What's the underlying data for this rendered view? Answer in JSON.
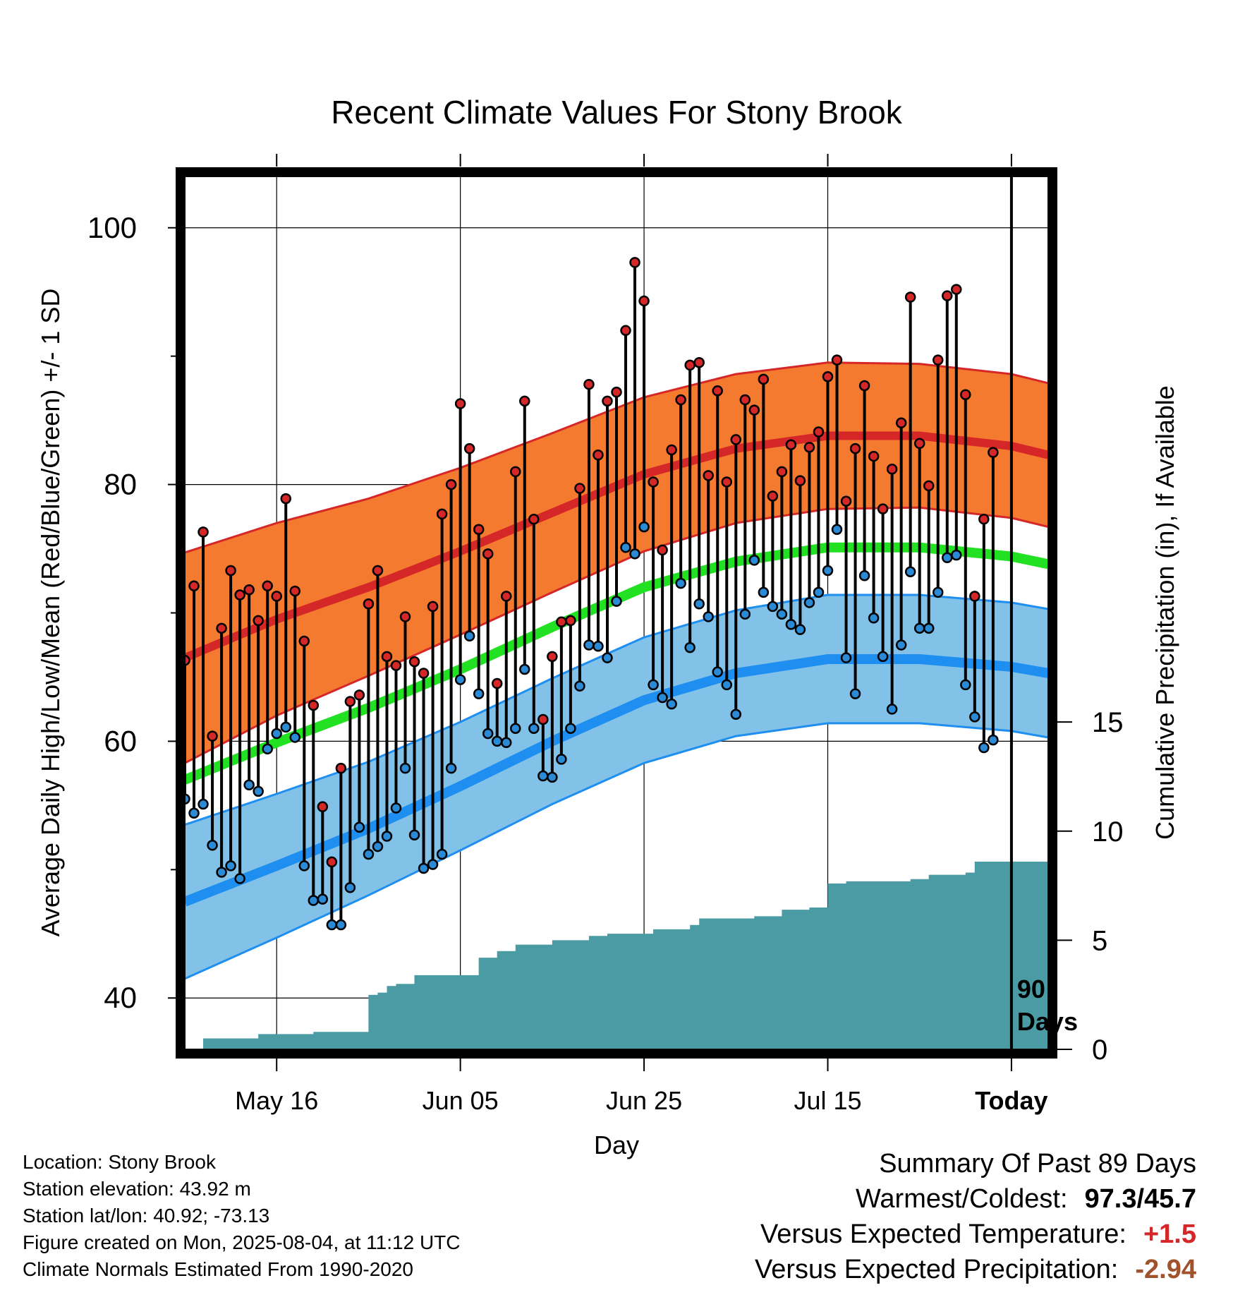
{
  "chart_data": {
    "type": "line",
    "title": "Recent Climate Values For Stony Brook",
    "xlabel": "Day",
    "ylabel": "Average Daily High/Low/Mean (Red/Blue/Green) +/- 1 SD",
    "y2label": "Cumulative Precipitation (in), If Available",
    "ylim": [
      36,
      104
    ],
    "y2lim": [
      0,
      40
    ],
    "yticks": [
      40,
      60,
      80,
      100
    ],
    "y2ticks": [
      0,
      5,
      10,
      15
    ],
    "x_dates": [
      "2025-05-06",
      "2025-08-08"
    ],
    "x_tick_dates": [
      "2025-05-16",
      "2025-06-05",
      "2025-06-25",
      "2025-07-15",
      "2025-08-04"
    ],
    "xtick_labels": [
      "May 16",
      "Jun 05",
      "Jun 25",
      "Jul 15",
      "Today"
    ],
    "today": "2025-08-04",
    "today_label": [
      "90",
      "Days"
    ],
    "grid": true,
    "colors": {
      "high_band": "#f47a30",
      "high_line": "#d62728",
      "low_band": "#82c2e8",
      "low_line": "#1e8ff0",
      "mean_line": "#22e022",
      "precip": "#4a9ba4",
      "high_dot": "#d62728",
      "low_dot": "#2b8ad6",
      "plus": "#d62728",
      "minus": "#a0522d"
    },
    "normals": {
      "dates": [
        "2025-05-06",
        "2025-05-16",
        "2025-05-26",
        "2025-06-05",
        "2025-06-15",
        "2025-06-25",
        "2025-07-05",
        "2025-07-15",
        "2025-07-25",
        "2025-08-04",
        "2025-08-08"
      ],
      "high_mean": [
        66.5,
        69.5,
        72.0,
        74.8,
        77.8,
        80.8,
        82.8,
        83.8,
        83.8,
        83.0,
        82.3
      ],
      "high_sd": [
        8.2,
        7.5,
        6.9,
        6.5,
        6.2,
        6.0,
        5.8,
        5.7,
        5.6,
        5.6,
        5.6
      ],
      "low_mean": [
        47.5,
        50.3,
        53.2,
        56.5,
        60.0,
        63.2,
        65.3,
        66.4,
        66.4,
        65.8,
        65.3
      ],
      "low_sd": [
        6.0,
        5.6,
        5.2,
        5.0,
        4.9,
        4.9,
        4.9,
        5.0,
        5.0,
        5.0,
        5.0
      ],
      "mean": [
        57.0,
        59.9,
        62.6,
        65.6,
        68.9,
        72.0,
        74.0,
        75.1,
        75.1,
        74.4,
        73.8
      ]
    },
    "series": [
      {
        "name": "High",
        "dates": [
          "2025-05-06",
          "2025-05-07",
          "2025-05-08",
          "2025-05-09",
          "2025-05-10",
          "2025-05-11",
          "2025-05-12",
          "2025-05-13",
          "2025-05-14",
          "2025-05-15",
          "2025-05-16",
          "2025-05-17",
          "2025-05-18",
          "2025-05-19",
          "2025-05-20",
          "2025-05-21",
          "2025-05-22",
          "2025-05-23",
          "2025-05-24",
          "2025-05-25",
          "2025-05-26",
          "2025-05-27",
          "2025-05-28",
          "2025-05-29",
          "2025-05-30",
          "2025-05-31",
          "2025-06-01",
          "2025-06-02",
          "2025-06-03",
          "2025-06-04",
          "2025-06-05",
          "2025-06-06",
          "2025-06-07",
          "2025-06-08",
          "2025-06-09",
          "2025-06-10",
          "2025-06-11",
          "2025-06-12",
          "2025-06-13",
          "2025-06-14",
          "2025-06-15",
          "2025-06-16",
          "2025-06-17",
          "2025-06-18",
          "2025-06-19",
          "2025-06-20",
          "2025-06-21",
          "2025-06-22",
          "2025-06-23",
          "2025-06-24",
          "2025-06-25",
          "2025-06-26",
          "2025-06-27",
          "2025-06-28",
          "2025-06-29",
          "2025-06-30",
          "2025-07-01",
          "2025-07-02",
          "2025-07-03",
          "2025-07-04",
          "2025-07-05",
          "2025-07-06",
          "2025-07-07",
          "2025-07-08",
          "2025-07-09",
          "2025-07-10",
          "2025-07-11",
          "2025-07-12",
          "2025-07-13",
          "2025-07-14",
          "2025-07-15",
          "2025-07-16",
          "2025-07-17",
          "2025-07-18",
          "2025-07-19",
          "2025-07-20",
          "2025-07-21",
          "2025-07-22",
          "2025-07-23",
          "2025-07-24",
          "2025-07-25",
          "2025-07-26",
          "2025-07-27",
          "2025-07-28",
          "2025-07-29",
          "2025-07-30",
          "2025-07-31",
          "2025-08-01",
          "2025-08-02"
        ],
        "values": [
          66.3,
          72.1,
          76.3,
          60.4,
          68.8,
          73.3,
          71.4,
          71.8,
          69.4,
          72.1,
          71.3,
          78.9,
          71.7,
          67.8,
          62.8,
          54.9,
          50.6,
          57.9,
          63.1,
          63.6,
          70.7,
          73.3,
          66.6,
          65.9,
          69.7,
          66.2,
          65.3,
          70.5,
          77.7,
          80.0,
          86.3,
          82.8,
          76.5,
          74.6,
          64.5,
          71.3,
          81.0,
          86.5,
          77.3,
          61.7,
          66.6,
          69.3,
          69.4,
          79.7,
          87.8,
          82.3,
          86.5,
          87.2,
          92.0,
          97.3,
          94.3,
          80.2,
          74.9,
          82.7,
          86.6,
          89.3,
          89.5,
          80.7,
          87.3,
          80.2,
          83.5,
          86.6,
          85.8,
          88.2,
          79.1,
          81.0,
          83.1,
          80.3,
          82.9,
          84.1,
          88.4,
          89.7,
          78.7,
          82.8,
          87.7,
          82.2,
          78.1,
          81.2,
          84.8,
          94.6,
          83.2,
          79.9,
          89.7,
          94.7,
          95.2,
          87.0,
          71.3,
          77.3,
          82.5
        ]
      },
      {
        "name": "Low",
        "dates": [
          "2025-05-06",
          "2025-05-07",
          "2025-05-08",
          "2025-05-09",
          "2025-05-10",
          "2025-05-11",
          "2025-05-12",
          "2025-05-13",
          "2025-05-14",
          "2025-05-15",
          "2025-05-16",
          "2025-05-17",
          "2025-05-18",
          "2025-05-19",
          "2025-05-20",
          "2025-05-21",
          "2025-05-22",
          "2025-05-23",
          "2025-05-24",
          "2025-05-25",
          "2025-05-26",
          "2025-05-27",
          "2025-05-28",
          "2025-05-29",
          "2025-05-30",
          "2025-05-31",
          "2025-06-01",
          "2025-06-02",
          "2025-06-03",
          "2025-06-04",
          "2025-06-05",
          "2025-06-06",
          "2025-06-07",
          "2025-06-08",
          "2025-06-09",
          "2025-06-10",
          "2025-06-11",
          "2025-06-12",
          "2025-06-13",
          "2025-06-14",
          "2025-06-15",
          "2025-06-16",
          "2025-06-17",
          "2025-06-18",
          "2025-06-19",
          "2025-06-20",
          "2025-06-21",
          "2025-06-22",
          "2025-06-23",
          "2025-06-24",
          "2025-06-25",
          "2025-06-26",
          "2025-06-27",
          "2025-06-28",
          "2025-06-29",
          "2025-06-30",
          "2025-07-01",
          "2025-07-02",
          "2025-07-03",
          "2025-07-04",
          "2025-07-05",
          "2025-07-06",
          "2025-07-07",
          "2025-07-08",
          "2025-07-09",
          "2025-07-10",
          "2025-07-11",
          "2025-07-12",
          "2025-07-13",
          "2025-07-14",
          "2025-07-15",
          "2025-07-16",
          "2025-07-17",
          "2025-07-18",
          "2025-07-19",
          "2025-07-20",
          "2025-07-21",
          "2025-07-22",
          "2025-07-23",
          "2025-07-24",
          "2025-07-25",
          "2025-07-26",
          "2025-07-27",
          "2025-07-28",
          "2025-07-29",
          "2025-07-30",
          "2025-07-31",
          "2025-08-01",
          "2025-08-02"
        ],
        "values": [
          55.5,
          54.4,
          55.1,
          51.9,
          49.8,
          50.3,
          49.3,
          56.6,
          56.1,
          59.4,
          60.6,
          61.1,
          60.3,
          50.3,
          47.6,
          47.7,
          45.7,
          45.7,
          48.6,
          53.3,
          51.2,
          51.8,
          52.6,
          54.8,
          57.9,
          52.7,
          50.1,
          50.4,
          51.2,
          57.9,
          64.8,
          68.2,
          63.7,
          60.6,
          60.0,
          59.9,
          61.0,
          65.6,
          61.0,
          57.3,
          57.2,
          58.6,
          61.0,
          64.3,
          67.5,
          67.4,
          66.5,
          70.9,
          75.1,
          74.6,
          76.7,
          64.4,
          63.4,
          62.9,
          72.3,
          67.3,
          70.7,
          69.7,
          65.4,
          64.4,
          62.1,
          69.9,
          74.1,
          71.6,
          70.5,
          69.9,
          69.1,
          68.7,
          70.8,
          71.6,
          73.3,
          76.5,
          66.5,
          63.7,
          72.9,
          69.6,
          66.6,
          62.5,
          67.5,
          73.2,
          68.8,
          68.8,
          71.6,
          74.3,
          74.5,
          64.4,
          61.9,
          59.5,
          60.1
        ]
      },
      {
        "name": "Precipitation",
        "dates": [
          "2025-05-07",
          "2025-05-08",
          "2025-05-12",
          "2025-05-14",
          "2025-05-20",
          "2025-05-26",
          "2025-05-27",
          "2025-05-28",
          "2025-05-29",
          "2025-05-31",
          "2025-06-07",
          "2025-06-09",
          "2025-06-11",
          "2025-06-15",
          "2025-06-19",
          "2025-06-21",
          "2025-06-26",
          "2025-06-30",
          "2025-07-01",
          "2025-07-07",
          "2025-07-10",
          "2025-07-13",
          "2025-07-15",
          "2025-07-17",
          "2025-07-24",
          "2025-07-26",
          "2025-07-30",
          "2025-07-31"
        ],
        "values": [
          0.0,
          0.5,
          0.5,
          0.7,
          0.8,
          2.5,
          2.6,
          2.9,
          3.0,
          3.4,
          4.2,
          4.5,
          4.8,
          5.0,
          5.2,
          5.3,
          5.5,
          5.7,
          6.0,
          6.1,
          6.4,
          6.5,
          7.6,
          7.7,
          7.8,
          8.0,
          8.1,
          8.6
        ]
      }
    ]
  },
  "footer": {
    "info": [
      "Location: Stony Brook",
      "Station elevation: 43.92 m",
      "Station lat/lon: 40.92; -73.13",
      "Figure created on Mon, 2025-08-04, at 11:12 UTC",
      "Climate Normals Estimated From 1990-2020"
    ],
    "summary_title": "Summary Of Past 89 Days",
    "warmest_label": "Warmest/Coldest:",
    "warmest_value": "97.3/45.7",
    "temp_label": "Versus Expected Temperature:",
    "temp_value": "+1.5",
    "precip_label": "Versus Expected Precipitation:",
    "precip_value": "-2.94"
  }
}
